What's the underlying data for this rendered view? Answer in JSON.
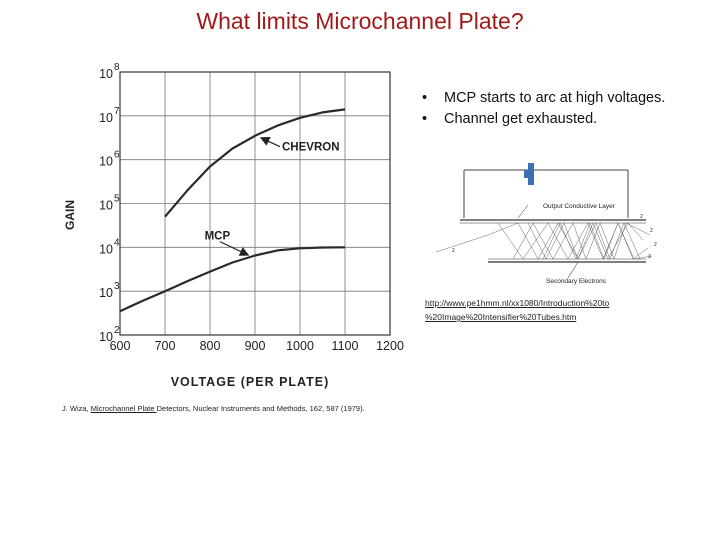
{
  "slide": {
    "title": "What limits Microchannel Plate?",
    "bullets": [
      "MCP starts to arc at high voltages.",
      "Channel get exhausted."
    ],
    "link_line1": "http://www.pe1hmm.nl/xx1080/Introduction%20to",
    "link_line2": "%20Image%20Intensifier%20Tubes.htm",
    "citation_pre": "J. Wiza, ",
    "citation_link": "Microchannel Plate ",
    "citation_post": "Detectors, Nuclear Instruments and Methods, 162, 587 (1979)."
  },
  "inset": {
    "top_label": "Output Conductive Layer",
    "bottom_label": "Secondary Electrons"
  },
  "chart_data": {
    "type": "line",
    "xlabel": "VOLTAGE (PER PLATE)",
    "ylabel": "GAIN",
    "xlim": [
      600,
      1200
    ],
    "ylim": [
      100,
      100000000
    ],
    "yscale": "log",
    "grid": true,
    "xticks": [
      "600",
      "700",
      "800",
      "900",
      "1000",
      "1100",
      "1200"
    ],
    "yticks": [
      {
        "base": "10",
        "exp": "2",
        "value": 100
      },
      {
        "base": "10",
        "exp": "3",
        "value": 1000
      },
      {
        "base": "10",
        "exp": "4",
        "value": 10000
      },
      {
        "base": "10",
        "exp": "5",
        "value": 100000
      },
      {
        "base": "10",
        "exp": "6",
        "value": 1000000
      },
      {
        "base": "10",
        "exp": "7",
        "value": 10000000
      },
      {
        "base": "10",
        "exp": "8",
        "value": 100000000
      }
    ],
    "series": [
      {
        "name": "CHEVRON",
        "x": [
          700,
          750,
          800,
          850,
          900,
          950,
          1000,
          1050,
          1100
        ],
        "y": [
          50000,
          200000,
          700000,
          1800000,
          3500000,
          6000000,
          9000000,
          12000000,
          14000000
        ]
      },
      {
        "name": "MCP",
        "x": [
          600,
          650,
          700,
          750,
          800,
          850,
          900,
          950,
          1000,
          1050,
          1100
        ],
        "y": [
          350,
          600,
          1000,
          1700,
          2800,
          4500,
          6500,
          8500,
          9500,
          9900,
          10000
        ]
      }
    ],
    "annotations": [
      "CHEVRON",
      "MCP"
    ]
  }
}
